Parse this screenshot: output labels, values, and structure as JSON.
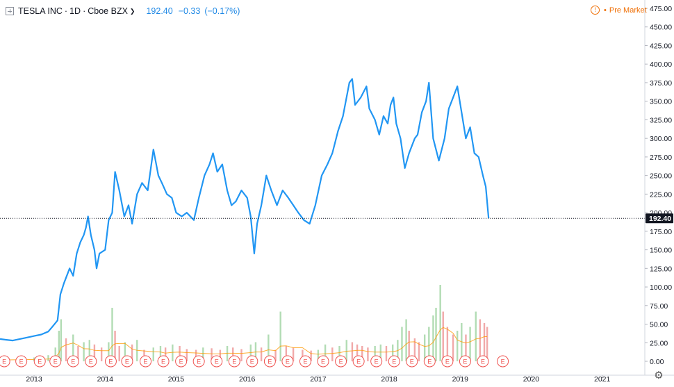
{
  "header": {
    "symbol": "TESLA INC",
    "interval": "1D",
    "exchange": "Cboe BZX",
    "last": "192.40",
    "change": "−0.33",
    "change_pct": "(−0.17%)",
    "session": "Pre Market",
    "session_icon": "!"
  },
  "colors": {
    "line": "#2196f3",
    "volume_up": "#a5d6a7",
    "volume_down": "#ef9a9a",
    "volume_ma": "#ff9800",
    "event_marker": "#ef5350",
    "price_tag_bg": "#131722",
    "session": "#ef6c00"
  },
  "chart_data": {
    "type": "line",
    "title": "TESLA INC · 1D · Cboe BZX",
    "last_price": 192.4,
    "last_price_label": "192.40",
    "price_axis": {
      "range": [
        -5,
        480
      ],
      "ticks": [
        "0.00",
        "25.00",
        "50.00",
        "75.00",
        "100.00",
        "125.00",
        "150.00",
        "175.00",
        "200.00",
        "225.00",
        "250.00",
        "275.00",
        "300.00",
        "325.00",
        "350.00",
        "375.00",
        "400.00",
        "425.00",
        "450.00",
        "475.00"
      ]
    },
    "time_axis": {
      "range": [
        2012.52,
        2021.6
      ],
      "labels": [
        "2013",
        "2014",
        "2015",
        "2016",
        "2017",
        "2018",
        "2019",
        "2020",
        "2021"
      ]
    },
    "series": [
      {
        "type": "line",
        "points": [
          [
            2012.52,
            30
          ],
          [
            2012.6,
            29
          ],
          [
            2012.7,
            28
          ],
          [
            2012.8,
            30
          ],
          [
            2012.9,
            32
          ],
          [
            2013.0,
            34
          ],
          [
            2013.1,
            36
          ],
          [
            2013.2,
            40
          ],
          [
            2013.27,
            48
          ],
          [
            2013.33,
            55
          ],
          [
            2013.37,
            90
          ],
          [
            2013.42,
            105
          ],
          [
            2013.5,
            125
          ],
          [
            2013.55,
            115
          ],
          [
            2013.6,
            145
          ],
          [
            2013.65,
            160
          ],
          [
            2013.7,
            170
          ],
          [
            2013.73,
            180
          ],
          [
            2013.76,
            195
          ],
          [
            2013.8,
            170
          ],
          [
            2013.85,
            150
          ],
          [
            2013.88,
            125
          ],
          [
            2013.92,
            145
          ],
          [
            2014.0,
            150
          ],
          [
            2014.05,
            190
          ],
          [
            2014.1,
            200
          ],
          [
            2014.14,
            255
          ],
          [
            2014.2,
            230
          ],
          [
            2014.27,
            195
          ],
          [
            2014.33,
            210
          ],
          [
            2014.38,
            185
          ],
          [
            2014.45,
            225
          ],
          [
            2014.52,
            240
          ],
          [
            2014.6,
            230
          ],
          [
            2014.68,
            285
          ],
          [
            2014.75,
            250
          ],
          [
            2014.8,
            240
          ],
          [
            2014.87,
            225
          ],
          [
            2014.94,
            220
          ],
          [
            2015.0,
            200
          ],
          [
            2015.08,
            195
          ],
          [
            2015.15,
            200
          ],
          [
            2015.25,
            190
          ],
          [
            2015.32,
            220
          ],
          [
            2015.4,
            250
          ],
          [
            2015.47,
            265
          ],
          [
            2015.52,
            280
          ],
          [
            2015.58,
            255
          ],
          [
            2015.65,
            265
          ],
          [
            2015.72,
            230
          ],
          [
            2015.78,
            210
          ],
          [
            2015.84,
            215
          ],
          [
            2015.92,
            230
          ],
          [
            2016.0,
            220
          ],
          [
            2016.05,
            195
          ],
          [
            2016.1,
            145
          ],
          [
            2016.14,
            185
          ],
          [
            2016.2,
            210
          ],
          [
            2016.27,
            250
          ],
          [
            2016.34,
            230
          ],
          [
            2016.42,
            210
          ],
          [
            2016.5,
            230
          ],
          [
            2016.58,
            220
          ],
          [
            2016.65,
            210
          ],
          [
            2016.72,
            200
          ],
          [
            2016.8,
            190
          ],
          [
            2016.88,
            185
          ],
          [
            2016.96,
            210
          ],
          [
            2017.05,
            250
          ],
          [
            2017.13,
            265
          ],
          [
            2017.2,
            280
          ],
          [
            2017.28,
            310
          ],
          [
            2017.35,
            330
          ],
          [
            2017.44,
            375
          ],
          [
            2017.48,
            380
          ],
          [
            2017.52,
            345
          ],
          [
            2017.6,
            355
          ],
          [
            2017.68,
            370
          ],
          [
            2017.72,
            340
          ],
          [
            2017.8,
            325
          ],
          [
            2017.86,
            305
          ],
          [
            2017.92,
            330
          ],
          [
            2017.98,
            320
          ],
          [
            2018.02,
            345
          ],
          [
            2018.06,
            355
          ],
          [
            2018.1,
            320
          ],
          [
            2018.16,
            300
          ],
          [
            2018.22,
            260
          ],
          [
            2018.28,
            280
          ],
          [
            2018.36,
            300
          ],
          [
            2018.4,
            305
          ],
          [
            2018.46,
            335
          ],
          [
            2018.52,
            350
          ],
          [
            2018.56,
            375
          ],
          [
            2018.62,
            300
          ],
          [
            2018.7,
            270
          ],
          [
            2018.78,
            300
          ],
          [
            2018.84,
            340
          ],
          [
            2018.9,
            355
          ],
          [
            2018.96,
            370
          ],
          [
            2019.02,
            335
          ],
          [
            2019.08,
            300
          ],
          [
            2019.14,
            315
          ],
          [
            2019.2,
            280
          ],
          [
            2019.26,
            275
          ],
          [
            2019.32,
            250
          ],
          [
            2019.36,
            235
          ],
          [
            2019.4,
            192.4
          ]
        ]
      },
      {
        "type": "volume",
        "scale_max": 100,
        "points": [
          [
            2012.6,
            3
          ],
          [
            2012.8,
            4
          ],
          [
            2013.0,
            5
          ],
          [
            2013.2,
            8
          ],
          [
            2013.3,
            18
          ],
          [
            2013.35,
            40
          ],
          [
            2013.38,
            55
          ],
          [
            2013.45,
            30
          ],
          [
            2013.55,
            35
          ],
          [
            2013.62,
            20
          ],
          [
            2013.7,
            25
          ],
          [
            2013.78,
            28
          ],
          [
            2013.85,
            22
          ],
          [
            2013.95,
            18
          ],
          [
            2014.05,
            25
          ],
          [
            2014.1,
            70
          ],
          [
            2014.14,
            40
          ],
          [
            2014.2,
            20
          ],
          [
            2014.28,
            25
          ],
          [
            2014.38,
            22
          ],
          [
            2014.45,
            28
          ],
          [
            2014.55,
            15
          ],
          [
            2014.68,
            18
          ],
          [
            2014.78,
            20
          ],
          [
            2014.85,
            18
          ],
          [
            2014.95,
            22
          ],
          [
            2015.05,
            20
          ],
          [
            2015.15,
            16
          ],
          [
            2015.28,
            15
          ],
          [
            2015.38,
            18
          ],
          [
            2015.5,
            17
          ],
          [
            2015.62,
            15
          ],
          [
            2015.72,
            20
          ],
          [
            2015.8,
            18
          ],
          [
            2015.92,
            16
          ],
          [
            2016.05,
            22
          ],
          [
            2016.12,
            25
          ],
          [
            2016.2,
            18
          ],
          [
            2016.3,
            35
          ],
          [
            2016.4,
            15
          ],
          [
            2016.47,
            65
          ],
          [
            2016.55,
            20
          ],
          [
            2016.65,
            18
          ],
          [
            2016.78,
            15
          ],
          [
            2016.9,
            14
          ],
          [
            2017.0,
            15
          ],
          [
            2017.1,
            22
          ],
          [
            2017.2,
            18
          ],
          [
            2017.3,
            20
          ],
          [
            2017.4,
            28
          ],
          [
            2017.48,
            25
          ],
          [
            2017.55,
            22
          ],
          [
            2017.62,
            20
          ],
          [
            2017.7,
            18
          ],
          [
            2017.8,
            20
          ],
          [
            2017.88,
            22
          ],
          [
            2017.96,
            20
          ],
          [
            2018.05,
            22
          ],
          [
            2018.12,
            28
          ],
          [
            2018.18,
            45
          ],
          [
            2018.24,
            55
          ],
          [
            2018.28,
            40
          ],
          [
            2018.36,
            30
          ],
          [
            2018.42,
            25
          ],
          [
            2018.5,
            35
          ],
          [
            2018.56,
            45
          ],
          [
            2018.62,
            60
          ],
          [
            2018.66,
            70
          ],
          [
            2018.72,
            100
          ],
          [
            2018.76,
            65
          ],
          [
            2018.82,
            45
          ],
          [
            2018.9,
            35
          ],
          [
            2018.96,
            40
          ],
          [
            2019.02,
            50
          ],
          [
            2019.08,
            35
          ],
          [
            2019.14,
            45
          ],
          [
            2019.22,
            65
          ],
          [
            2019.28,
            55
          ],
          [
            2019.34,
            50
          ],
          [
            2019.38,
            45
          ]
        ]
      }
    ],
    "volume_axis": {
      "range": [
        0,
        100
      ],
      "ticks": []
    },
    "event_markers": {
      "label": "E",
      "x": [
        2012.58,
        2012.82,
        2013.08,
        2013.3,
        2013.55,
        2013.8,
        2014.08,
        2014.31,
        2014.57,
        2014.82,
        2015.07,
        2015.32,
        2015.57,
        2015.82,
        2016.07,
        2016.32,
        2016.57,
        2016.82,
        2017.07,
        2017.32,
        2017.57,
        2017.82,
        2018.07,
        2018.32,
        2018.57,
        2018.82,
        2019.07,
        2019.32,
        2019.6
      ]
    },
    "grid": false,
    "legend": "none"
  }
}
